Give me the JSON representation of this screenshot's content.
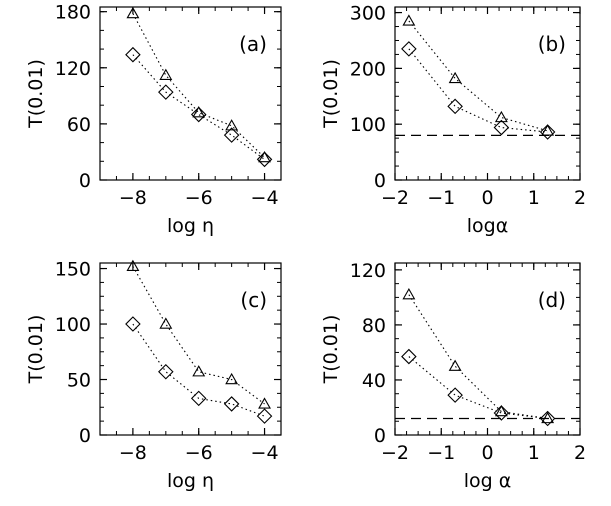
{
  "chart_data": [
    {
      "type": "scatter",
      "panel": "(a)",
      "xlabel": "log η",
      "ylabel": "T(0.01)",
      "xlim": [
        -9,
        -3.5
      ],
      "ylim": [
        0,
        185
      ],
      "xticks": [
        -8,
        -6,
        -4
      ],
      "yticks": [
        0,
        60,
        120,
        180
      ],
      "xminor_step": 0.5,
      "yminor_step": 20,
      "series": [
        {
          "marker": "triangle",
          "line": "dotted",
          "x": [
            -8,
            -7,
            -6,
            -5,
            -4
          ],
          "y": [
            178,
            112,
            72,
            58,
            24
          ]
        },
        {
          "marker": "diamond",
          "line": "dotted",
          "x": [
            -8,
            -7,
            -6,
            -5,
            -4
          ],
          "y": [
            134,
            94,
            70,
            48,
            22
          ]
        }
      ]
    },
    {
      "type": "scatter",
      "panel": "(b)",
      "xlabel": "logα",
      "ylabel": "T(0.01)",
      "xlim": [
        -2,
        2
      ],
      "ylim": [
        0,
        310
      ],
      "xticks": [
        -2,
        -1,
        0,
        1,
        2
      ],
      "yticks": [
        0,
        100,
        200,
        300
      ],
      "xminor_step": 0.25,
      "yminor_step": 25,
      "hline": 80,
      "series": [
        {
          "marker": "triangle",
          "line": "dotted",
          "x": [
            -1.7,
            -0.7,
            0.3,
            1.3
          ],
          "y": [
            285,
            182,
            112,
            88
          ]
        },
        {
          "marker": "diamond",
          "line": "dotted",
          "x": [
            -1.7,
            -0.7,
            0.3,
            1.3
          ],
          "y": [
            235,
            132,
            94,
            86
          ]
        }
      ]
    },
    {
      "type": "scatter",
      "panel": "(c)",
      "xlabel": "log η",
      "ylabel": "T(0.01)",
      "xlim": [
        -9,
        -3.5
      ],
      "ylim": [
        0,
        155
      ],
      "xticks": [
        -8,
        -6,
        -4
      ],
      "yticks": [
        0,
        50,
        100,
        150
      ],
      "xminor_step": 0.5,
      "yminor_step": 12.5,
      "series": [
        {
          "marker": "triangle",
          "line": "dotted",
          "x": [
            -8,
            -7,
            -6,
            -5,
            -4
          ],
          "y": [
            152,
            100,
            57,
            50,
            28
          ]
        },
        {
          "marker": "diamond",
          "line": "dotted",
          "x": [
            -8,
            -7,
            -6,
            -5,
            -4
          ],
          "y": [
            100,
            57,
            33,
            28,
            17
          ]
        }
      ]
    },
    {
      "type": "scatter",
      "panel": "(d)",
      "xlabel": "log α",
      "ylabel": "T(0.01)",
      "xlim": [
        -2,
        2
      ],
      "ylim": [
        0,
        125
      ],
      "xticks": [
        -2,
        -1,
        0,
        1,
        2
      ],
      "yticks": [
        0,
        40,
        80,
        120
      ],
      "xminor_step": 0.25,
      "yminor_step": 10,
      "hline": 12,
      "series": [
        {
          "marker": "triangle",
          "line": "dotted",
          "x": [
            -1.7,
            -0.7,
            0.3,
            1.3
          ],
          "y": [
            102,
            50,
            17,
            12
          ]
        },
        {
          "marker": "diamond",
          "line": "dotted",
          "x": [
            -1.7,
            -0.7,
            0.3,
            1.3
          ],
          "y": [
            57,
            29,
            16,
            12
          ]
        }
      ]
    }
  ]
}
